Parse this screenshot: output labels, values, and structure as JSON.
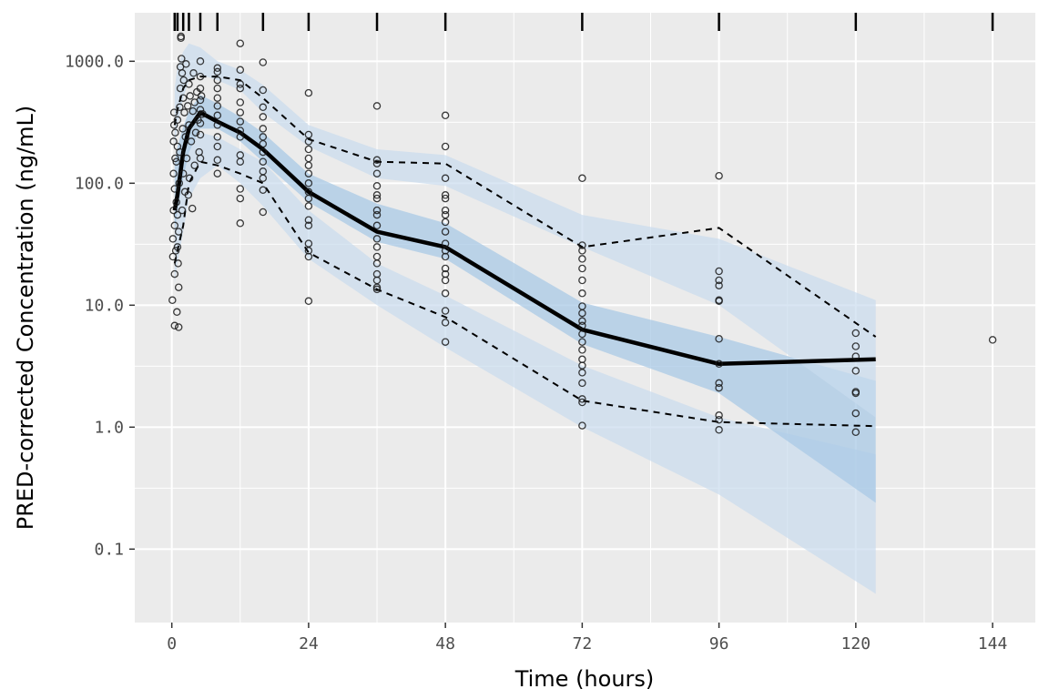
{
  "chart_data": {
    "type": "line",
    "xlabel": "Time (hours)",
    "ylabel": "PRED-corrected Concentration (ng/mL)",
    "y_scale": "log",
    "xlim": [
      -6.5,
      151.5
    ],
    "ylim": [
      0.025,
      2500
    ],
    "x_ticks": [
      0,
      24,
      48,
      72,
      96,
      120,
      144
    ],
    "x_tick_labels": [
      "0",
      "24",
      "48",
      "72",
      "96",
      "120",
      "144"
    ],
    "y_ticks": [
      0.1,
      1,
      10,
      100,
      1000
    ],
    "y_tick_labels": [
      "0.1",
      "1.0",
      "10.0",
      "100.0",
      "1000.0"
    ],
    "grid": true,
    "bin_times": [
      0.5,
      1,
      2,
      3,
      5,
      8,
      16,
      24,
      36,
      48,
      72,
      96,
      120,
      144
    ],
    "prediction_intervals": [
      {
        "name": "lower-percentile-band",
        "x": [
          0.5,
          1,
          2,
          3,
          5,
          8,
          12,
          16,
          24,
          36,
          48,
          72,
          96,
          123.5
        ],
        "lower": [
          15,
          22,
          40,
          75,
          110,
          140,
          100,
          65,
          24,
          10,
          4.5,
          1.0,
          0.28,
          0.043
        ],
        "upper": [
          60,
          80,
          130,
          200,
          260,
          240,
          190,
          150,
          60,
          22,
          12,
          3.2,
          1.2,
          0.6
        ]
      },
      {
        "name": "median-band",
        "x": [
          0.5,
          1,
          2,
          3,
          5,
          8,
          12,
          16,
          24,
          36,
          48,
          72,
          96,
          123.5
        ],
        "lower": [
          40,
          60,
          110,
          180,
          280,
          280,
          220,
          150,
          70,
          33,
          24,
          4.8,
          1.9,
          0.24
        ],
        "upper": [
          150,
          200,
          290,
          390,
          530,
          450,
          350,
          260,
          120,
          68,
          47,
          10.5,
          5.5,
          2.4
        ]
      },
      {
        "name": "upper-percentile-band",
        "x": [
          0.5,
          1,
          2,
          3,
          5,
          8,
          12,
          16,
          24,
          36,
          48,
          72,
          96,
          123.5
        ],
        "lower": [
          200,
          300,
          500,
          700,
          780,
          700,
          580,
          380,
          200,
          110,
          95,
          30,
          10,
          1.2
        ],
        "upper": [
          600,
          900,
          1200,
          1400,
          1300,
          1000,
          850,
          640,
          300,
          190,
          170,
          55,
          35,
          11
        ]
      }
    ],
    "series": [
      {
        "name": "observed-median",
        "x": [
          0.5,
          1,
          2,
          3,
          5,
          8,
          12,
          16,
          24,
          36,
          48,
          72,
          96,
          123.5
        ],
        "values": [
          60,
          80,
          180,
          280,
          380,
          320,
          260,
          190,
          85,
          40,
          30,
          6.3,
          3.3,
          3.6
        ]
      },
      {
        "name": "observed-5th-percentile",
        "x": [
          0.5,
          1,
          2,
          3,
          5,
          8,
          12,
          16,
          24,
          36,
          48,
          72,
          96,
          123.5
        ],
        "values": [
          22,
          28,
          45,
          100,
          150,
          140,
          120,
          100,
          27,
          13.5,
          8,
          1.65,
          1.1,
          1.02
        ]
      },
      {
        "name": "observed-95th-percentile",
        "x": [
          0.5,
          1,
          2,
          3,
          5,
          8,
          12,
          16,
          24,
          36,
          48,
          72,
          96,
          123.5
        ],
        "values": [
          300,
          400,
          600,
          700,
          750,
          750,
          700,
          500,
          230,
          150,
          145,
          30,
          43,
          5.5
        ]
      }
    ],
    "observations": [
      [
        0.1,
        11
      ],
      [
        0.2,
        25
      ],
      [
        0.2,
        35
      ],
      [
        0.3,
        60
      ],
      [
        0.3,
        120
      ],
      [
        0.3,
        220
      ],
      [
        0.4,
        300
      ],
      [
        0.4,
        380
      ],
      [
        0.5,
        6.8
      ],
      [
        0.5,
        18
      ],
      [
        0.5,
        45
      ],
      [
        0.5,
        90
      ],
      [
        0.6,
        160
      ],
      [
        0.6,
        260
      ],
      [
        0.7,
        28
      ],
      [
        0.8,
        70
      ],
      [
        0.8,
        150
      ],
      [
        0.9,
        8.8
      ],
      [
        1.0,
        30
      ],
      [
        1.0,
        55
      ],
      [
        1.0,
        200
      ],
      [
        1.0,
        330
      ],
      [
        1.1,
        22
      ],
      [
        1.2,
        6.6
      ],
      [
        1.2,
        14
      ],
      [
        1.2,
        40
      ],
      [
        1.3,
        100
      ],
      [
        1.4,
        180
      ],
      [
        1.4,
        420
      ],
      [
        1.5,
        600
      ],
      [
        1.5,
        900
      ],
      [
        1.6,
        1550
      ],
      [
        1.6,
        1600
      ],
      [
        1.7,
        1050
      ],
      [
        1.8,
        800
      ],
      [
        1.8,
        60
      ],
      [
        1.9,
        280
      ],
      [
        2.0,
        500
      ],
      [
        2.0,
        120
      ],
      [
        2.1,
        700
      ],
      [
        2.2,
        380
      ],
      [
        2.3,
        85
      ],
      [
        2.4,
        240
      ],
      [
        2.5,
        950
      ],
      [
        2.6,
        160
      ],
      [
        2.8,
        430
      ],
      [
        2.9,
        80
      ],
      [
        3.0,
        650
      ],
      [
        3.0,
        300
      ],
      [
        3.1,
        110
      ],
      [
        3.2,
        520
      ],
      [
        3.4,
        220
      ],
      [
        3.6,
        62
      ],
      [
        3.7,
        390
      ],
      [
        3.8,
        800
      ],
      [
        4.0,
        460
      ],
      [
        4.0,
        140
      ],
      [
        4.2,
        260
      ],
      [
        4.4,
        560
      ],
      [
        4.6,
        330
      ],
      [
        4.8,
        180
      ],
      [
        5.0,
        1000
      ],
      [
        5.0,
        750
      ],
      [
        5.0,
        600
      ],
      [
        5.0,
        480
      ],
      [
        5.0,
        400
      ],
      [
        5.0,
        310
      ],
      [
        5.0,
        250
      ],
      [
        5.0,
        160
      ],
      [
        5.2,
        520
      ],
      [
        5.4,
        370
      ],
      [
        8.0,
        880
      ],
      [
        8.0,
        820
      ],
      [
        8.0,
        700
      ],
      [
        8.0,
        600
      ],
      [
        8.0,
        500
      ],
      [
        8.0,
        430
      ],
      [
        8.0,
        360
      ],
      [
        8.0,
        300
      ],
      [
        8.0,
        240
      ],
      [
        8.0,
        200
      ],
      [
        8.0,
        155
      ],
      [
        8.0,
        120
      ],
      [
        12.0,
        1400
      ],
      [
        12.0,
        850
      ],
      [
        12.0,
        650
      ],
      [
        12.0,
        600
      ],
      [
        12.0,
        460
      ],
      [
        12.0,
        380
      ],
      [
        12.0,
        320
      ],
      [
        12.0,
        270
      ],
      [
        12.0,
        240
      ],
      [
        12.0,
        170
      ],
      [
        12.0,
        150
      ],
      [
        12.0,
        90
      ],
      [
        12.0,
        75
      ],
      [
        12.0,
        47
      ],
      [
        16.0,
        980
      ],
      [
        16.0,
        580
      ],
      [
        16.0,
        420
      ],
      [
        16.0,
        350
      ],
      [
        16.0,
        280
      ],
      [
        16.0,
        240
      ],
      [
        16.0,
        210
      ],
      [
        16.0,
        180
      ],
      [
        16.0,
        150
      ],
      [
        16.0,
        125
      ],
      [
        16.0,
        110
      ],
      [
        16.0,
        88
      ],
      [
        16.0,
        58
      ],
      [
        24.0,
        550
      ],
      [
        24.0,
        250
      ],
      [
        24.0,
        220
      ],
      [
        24.0,
        190
      ],
      [
        24.0,
        160
      ],
      [
        24.0,
        140
      ],
      [
        24.0,
        120
      ],
      [
        24.0,
        100
      ],
      [
        24.0,
        85
      ],
      [
        24.0,
        75
      ],
      [
        24.0,
        65
      ],
      [
        24.0,
        50
      ],
      [
        24.0,
        45
      ],
      [
        24.0,
        32
      ],
      [
        24.0,
        28
      ],
      [
        24.0,
        25
      ],
      [
        24.0,
        10.8
      ],
      [
        36.0,
        430
      ],
      [
        36.0,
        155
      ],
      [
        36.0,
        145
      ],
      [
        36.0,
        120
      ],
      [
        36.0,
        95
      ],
      [
        36.0,
        80
      ],
      [
        36.0,
        75
      ],
      [
        36.0,
        60
      ],
      [
        36.0,
        55
      ],
      [
        36.0,
        45
      ],
      [
        36.0,
        35
      ],
      [
        36.0,
        30
      ],
      [
        36.0,
        25
      ],
      [
        36.0,
        22
      ],
      [
        36.0,
        18
      ],
      [
        36.0,
        16
      ],
      [
        36.0,
        14
      ],
      [
        36.0,
        13.5
      ],
      [
        48.0,
        360
      ],
      [
        48.0,
        200
      ],
      [
        48.0,
        110
      ],
      [
        48.0,
        80
      ],
      [
        48.0,
        75
      ],
      [
        48.0,
        60
      ],
      [
        48.0,
        55
      ],
      [
        48.0,
        48
      ],
      [
        48.0,
        40
      ],
      [
        48.0,
        32
      ],
      [
        48.0,
        28
      ],
      [
        48.0,
        25
      ],
      [
        48.0,
        20
      ],
      [
        48.0,
        18
      ],
      [
        48.0,
        16
      ],
      [
        48.0,
        12.5
      ],
      [
        48.0,
        9
      ],
      [
        48.0,
        7.2
      ],
      [
        48.0,
        5
      ],
      [
        72.0,
        110
      ],
      [
        72.0,
        31
      ],
      [
        72.0,
        28
      ],
      [
        72.0,
        24
      ],
      [
        72.0,
        20
      ],
      [
        72.0,
        16
      ],
      [
        72.0,
        12.5
      ],
      [
        72.0,
        9.8
      ],
      [
        72.0,
        8.6
      ],
      [
        72.0,
        7.4
      ],
      [
        72.0,
        6.8
      ],
      [
        72.0,
        5.8
      ],
      [
        72.0,
        5
      ],
      [
        72.0,
        4.3
      ],
      [
        72.0,
        3.6
      ],
      [
        72.0,
        3.2
      ],
      [
        72.0,
        2.8
      ],
      [
        72.0,
        2.3
      ],
      [
        72.0,
        1.7
      ],
      [
        72.0,
        1.6
      ],
      [
        72.0,
        1.03
      ],
      [
        96.0,
        115
      ],
      [
        96.0,
        19
      ],
      [
        96.0,
        16
      ],
      [
        96.0,
        14.5
      ],
      [
        96.0,
        11
      ],
      [
        96.0,
        10.8
      ],
      [
        96.0,
        5.3
      ],
      [
        96.0,
        3.3
      ],
      [
        96.0,
        2.3
      ],
      [
        96.0,
        2.1
      ],
      [
        96.0,
        1.25
      ],
      [
        96.0,
        1.15
      ],
      [
        96.0,
        0.95
      ],
      [
        120.0,
        5.9
      ],
      [
        120.0,
        4.6
      ],
      [
        120.0,
        3.8
      ],
      [
        120.0,
        2.9
      ],
      [
        120.0,
        1.95
      ],
      [
        120.0,
        1.9
      ],
      [
        120.0,
        1.3
      ],
      [
        120.0,
        0.91
      ],
      [
        144.0,
        5.2
      ]
    ]
  },
  "colors": {
    "panel_bg": "#ebebeb",
    "grid": "#ffffff",
    "band_outer": "#c9dcee",
    "band_inner": "#a9c9e6",
    "line": "#000000",
    "point": "#1a1a1a"
  }
}
